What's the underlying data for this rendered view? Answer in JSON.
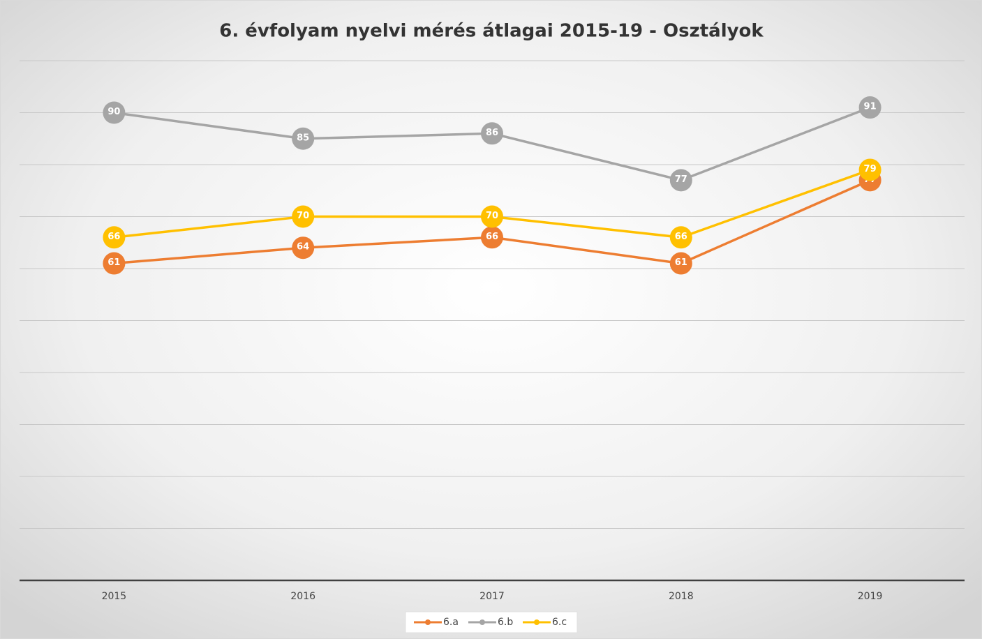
{
  "chart_data": {
    "type": "line",
    "title": "6. évfolyam nyelvi mérés átlagai 2015-19 - Osztályok",
    "categories": [
      "2015",
      "2016",
      "2017",
      "2018",
      "2019"
    ],
    "series": [
      {
        "name": "6.a",
        "color": "#ed7d31",
        "values": [
          61,
          64,
          66,
          61,
          77
        ]
      },
      {
        "name": "6.b",
        "color": "#a5a5a5",
        "values": [
          90,
          85,
          86,
          77,
          91
        ]
      },
      {
        "name": "6.c",
        "color": "#ffc000",
        "values": [
          66,
          70,
          70,
          66,
          79
        ]
      }
    ],
    "ylim": [
      0,
      100
    ],
    "yticks": [
      0,
      10,
      20,
      30,
      40,
      50,
      60,
      70,
      80,
      90,
      100
    ],
    "grid": true,
    "legend": "bottom"
  }
}
